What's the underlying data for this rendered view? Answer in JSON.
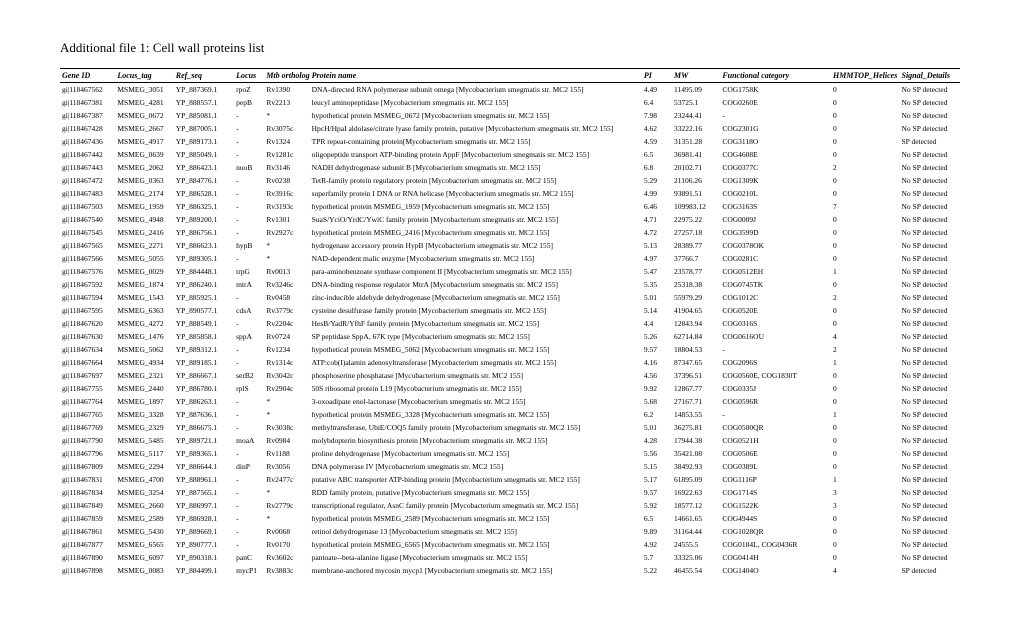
{
  "title": "Additional file 1: Cell wall proteins list",
  "columns": [
    "Gene ID",
    "Locus_tag",
    "Ref_seq",
    "Locus",
    "Mtb orthologue",
    "Protein name",
    "PI",
    "MW",
    "Functional category",
    "HMMTOP_Helices",
    "Signal_Details"
  ],
  "rows": [
    [
      "gi|118467562",
      "MSMEG_3051",
      "YP_887369.1",
      "rpoZ",
      "Rv1390",
      "DNA-directed RNA polymerase subunit omega [Mycobacterium smegmatis str. MC2 155]",
      "4.49",
      "11495.09",
      "COG1758K",
      "0",
      "No SP detected"
    ],
    [
      "gi|118467381",
      "MSMEG_4281",
      "YP_888557.1",
      "pepB",
      "Rv2213",
      "leucyl aminopeptidase [Mycobacterium smegmatis str. MC2 155]",
      "6.4",
      "53725.1",
      "COG0260E",
      "0",
      "No SP detected"
    ],
    [
      "gi|118467387",
      "MSMEG_0672",
      "YP_885081.1",
      "-",
      "*",
      "hypothetical protein MSMEG_0672 [Mycobacterium smegmatis str. MC2 155]",
      "7.98",
      "23244.41",
      "-",
      "0",
      "No SP detected"
    ],
    [
      "gi|118467428",
      "MSMEG_2667",
      "YP_887005.1",
      "-",
      "Rv3075c",
      "HpcH/HpaI aldolase/citrate lyase family protein, putative [Mycobacterium smegmatis str. MC2 155]",
      "4.62",
      "33222.16",
      "COG2301G",
      "0",
      "No SP detected"
    ],
    [
      "gi|118467436",
      "MSMEG_4917",
      "YP_889173.1",
      "-",
      "Rv1324",
      "TPR repeat-containing protein[Mycobacterium smegmatis str. MC2 155]",
      "4.59",
      "31351.28",
      "COG3118O",
      "0",
      "SP detected"
    ],
    [
      "gi|118467442",
      "MSMEG_0639",
      "YP_885049.1",
      "-",
      "Rv1281c",
      "oligopeptide transport ATP-binding protein AppF [Mycobacterium smegmatis str. MC2 155]",
      "6.5",
      "36981.41",
      "COG4608E",
      "0",
      "No SP detected"
    ],
    [
      "gi|118467443",
      "MSMEG_2062",
      "YP_886423.1",
      "nuoB",
      "Rv3146",
      "NADH dehydrogenase subunit B [Mycobacterium smegmatis str. MC2 155]",
      "6.8",
      "20102.71",
      "COG0377C",
      "2",
      "No SP detected"
    ],
    [
      "gi|118467472",
      "MSMEG_0363",
      "YP_884776.1",
      "-",
      "Rv0238",
      "TetR-family protein regulatory protein [Mycobacterium smegmatis str. MC2 155]",
      "5.29",
      "21106.26",
      "COG1309K",
      "0",
      "No SP detected"
    ],
    [
      "gi|118467483",
      "MSMEG_2174",
      "YP_886528.1",
      "-",
      "Rv3916c",
      "superfamily protein I DNA or RNA helicase [Mycobacterium smegmatis str. MC2 155]",
      "4.99",
      "93891.51",
      "COG0210L",
      "0",
      "No SP detected"
    ],
    [
      "gi|118467503",
      "MSMEG_1959",
      "YP_886325.1",
      "-",
      "Rv3193c",
      "hypothetical protein MSMEG_1959 [Mycobacterium smegmatis str. MC2 155]",
      "6.46",
      "109983.12",
      "COG3163S",
      "7",
      "No SP detected"
    ],
    [
      "gi|118467540",
      "MSMEG_4948",
      "YP_889200.1",
      "-",
      "Rv1301",
      "SuaS/YciO/YrdC/YwiC family protein [Mycobacterium smegmatis str. MC2 155]",
      "4.71",
      "22975.22",
      "COG0009J",
      "0",
      "No SP detected"
    ],
    [
      "gi|118467545",
      "MSMEG_2416",
      "YP_886756.1",
      "-",
      "Rv2927c",
      "hypothetical protein MSMEG_2416 [Mycobacterium smegmatis str. MC2 155]",
      "4.72",
      "27257.18",
      "COG3599D",
      "0",
      "No SP detected"
    ],
    [
      "gi|118467565",
      "MSMEG_2271",
      "YP_886623.1",
      "hypB",
      "*",
      "hydrogenase accessory protein HypB [Mycobacterium smegmatis str. MC2 155]",
      "5.13",
      "28389.77",
      "COG0378OK",
      "0",
      "No SP detected"
    ],
    [
      "gi|118467566",
      "MSMEG_5055",
      "YP_889305.1",
      "-",
      "*",
      "NAD-dependent malic enzyme [Mycobacterium smegmatis str. MC2 155]",
      "4.97",
      "37766.7",
      "COG0281C",
      "0",
      "No SP detected"
    ],
    [
      "gi|118467576",
      "MSMEG_0029",
      "YP_884448.1",
      "trpG",
      "Rv0013",
      "para-aminobenzoate synthase component II [Mycobacterium smegmatis str. MC2 155]",
      "5.47",
      "23578.77",
      "COG0512EH",
      "1",
      "No SP detected"
    ],
    [
      "gi|118467592",
      "MSMEG_1874",
      "YP_886240.1",
      "mtrA",
      "Rv3246c",
      "DNA-binding response regulator MtrA [Mycobacterium smegmatis str. MC2 155]",
      "5.35",
      "25318.38",
      "COG0745TK",
      "0",
      "No SP detected"
    ],
    [
      "gi|118467594",
      "MSMEG_1543",
      "YP_885925.1",
      "-",
      "Rv0458",
      "zinc-inducible aldehyde dehydrogenase [Mycobacterium smegmatis str. MC2 155]",
      "5.01",
      "55979.29",
      "COG1012C",
      "2",
      "No SP detected"
    ],
    [
      "gi|118467595",
      "MSMEG_6363",
      "YP_890577.1",
      "cdsA",
      "Rv3779c",
      "cysteine desulfurase family protein [Mycobacterium smegmatis str. MC2 155]",
      "5.14",
      "41904.65",
      "COG0520E",
      "0",
      "No SP detected"
    ],
    [
      "gi|118467620",
      "MSMEG_4272",
      "YP_888549.1",
      "-",
      "Rv2204c",
      "HesB/YadR/YfhF family protein [Mycobacterium smegmatis str. MC2 155]",
      "4.4",
      "12843.94",
      "COG0316S",
      "0",
      "No SP detected"
    ],
    [
      "gi|118467630",
      "MSMEG_1476",
      "YP_885858.1",
      "sppA",
      "Rv0724",
      "SP peptidase SppA, 67K type [Mycobacterium smegmatis str. MC2 155]",
      "5.26",
      "62714.84",
      "COG0616OU",
      "4",
      "No SP detected"
    ],
    [
      "gi|118467634",
      "MSMEG_5062",
      "YP_889312.1",
      "-",
      "Rv1234",
      "hypothetical protein MSMEG_5062 [Mycobacterium smegmatis str. MC2 155]",
      "9.57",
      "18804.53",
      "-",
      "2",
      "No SP detected"
    ],
    [
      "gi|118467664",
      "MSMEG_4934",
      "YP_889185.1",
      "-",
      "Rv1314c",
      "ATP:cob(I)alamin adenosyltransferase [Mycobacterium smegmatis str. MC2 155]",
      "4.16",
      "87347.65",
      "COG2096S",
      "1",
      "No SP detected"
    ],
    [
      "gi|118467697",
      "MSMEG_2321",
      "YP_886667.1",
      "serB2",
      "Rv3042c",
      "phosphoserine phosphatase [Mycobacterium smegmatis str. MC2 155]",
      "4.56",
      "37396.51",
      "COG0560E, COG1830T",
      "0",
      "No SP detected"
    ],
    [
      "gi|118467755",
      "MSMEG_2440",
      "YP_886780.1",
      "rplS",
      "Rv2904c",
      "50S ribosomal protein L19 [Mycobacterium smegmatis str. MC2 155]",
      "9.92",
      "12867.77",
      "COG0335J",
      "0",
      "No SP detected"
    ],
    [
      "gi|118467764",
      "MSMEG_1897",
      "YP_886263.1",
      "-",
      "*",
      "3-oxoadipate enol-lactonase [Mycobacterium smegmatis str. MC2 155]",
      "5.68",
      "27167.71",
      "COG0596R",
      "0",
      "No SP detected"
    ],
    [
      "gi|118467765",
      "MSMEG_3328",
      "YP_887636.1",
      "-",
      "*",
      "hypothetical protein MSMEG_3328 [Mycobacterium smegmatis str. MC2 155]",
      "6.2",
      "14853.55",
      "-",
      "1",
      "No SP detected"
    ],
    [
      "gi|118467769",
      "MSMEG_2329",
      "YP_886675.1",
      "-",
      "Rv3038c",
      "methyltransferase, UbiE/COQ5 family protein [Mycobacterium smegmatis str. MC2 155]",
      "5.01",
      "36275.81",
      "COG0500QR",
      "0",
      "No SP detected"
    ],
    [
      "gi|118467790",
      "MSMEG_5485",
      "YP_889721.1",
      "moaA",
      "Rv0984",
      "molybdopterin biosynthesis protein [Mycobacterium smegmatis str. MC2 155]",
      "4.28",
      "17944.38",
      "COG0521H",
      "0",
      "No SP detected"
    ],
    [
      "gi|118467796",
      "MSMEG_5117",
      "YP_889365.1",
      "-",
      "Rv1188",
      "proline dehydrogenase [Mycobacterium smegmatis str. MC2 155]",
      "5.56",
      "35421.08",
      "COG0506E",
      "0",
      "No SP detected"
    ],
    [
      "gi|118467809",
      "MSMEG_2294",
      "YP_886644.1",
      "dinP",
      "Rv3056",
      "DNA polymerase IV [Mycobacterium smegmatis str. MC2 155]",
      "5.15",
      "38492.93",
      "COG0389L",
      "0",
      "No SP detected"
    ],
    [
      "gi|118467831",
      "MSMEG_4700",
      "YP_888961.1",
      "-",
      "Rv2477c",
      "putative ABC transporter ATP-binding protein [Mycobacterium smegmatis str. MC2 155]",
      "5.17",
      "61895.09",
      "COG1116P",
      "1",
      "No SP detected"
    ],
    [
      "gi|118467834",
      "MSMEG_3254",
      "YP_887565.1",
      "-",
      "*",
      "RDD family protein, putative [Mycobacterium smegmatis str. MC2 155]",
      "9.57",
      "16922.63",
      "COG1714S",
      "3",
      "No SP detected"
    ],
    [
      "gi|118467849",
      "MSMEG_2660",
      "YP_886997.1",
      "-",
      "Rv2779c",
      "transcriptional regulator, AsnC family protein [Mycobacterium smegmatis str. MC2 155]",
      "5.92",
      "18577.12",
      "COG1522K",
      "3",
      "No SP detected"
    ],
    [
      "gi|118467859",
      "MSMEG_2589",
      "YP_886928.1",
      "-",
      "*",
      "hypothetical protein MSMEG_2589 [Mycobacterium smegmatis str. MC2 155]",
      "6.5",
      "14661.65",
      "COG4944S",
      "0",
      "No SP detected"
    ],
    [
      "gi|118467861",
      "MSMEG_5430",
      "YP_889669.1",
      "-",
      "Rv0068",
      "retinol dehydrogenase 13 [Mycobacterium smegmatis str. MC2 155]",
      "9.89",
      "31164.44",
      "COG1028QR",
      "0",
      "No SP detected"
    ],
    [
      "gi|118467877",
      "MSMEG_6565",
      "YP_890777.1",
      "-",
      "Rv0170",
      "hypothetical protein MSMEG_6565 [Mycobacterium smegmatis str. MC2 155]",
      "4.92",
      "24555.5",
      "COG0184L, COG0436R",
      "0",
      "No SP detected"
    ],
    [
      "gi|118467890",
      "MSMEG_6097",
      "YP_890318.1",
      "panC",
      "Rv3602c",
      "pantoate--beta-alanine ligase [Mycobacterium smegmatis str. MC2 155]",
      "5.7",
      "33325.06",
      "COG0414H",
      "0",
      "No SP detected"
    ],
    [
      "gi|118467898",
      "MSMEG_0083",
      "YP_884499.1",
      "mycP1",
      "Rv3883c",
      "membrane-anchored mycosin mycp1 [Mycobacterium smegmatis str. MC2 155]",
      "5.22",
      "46455.54",
      "COG1404O",
      "4",
      "SP detected"
    ]
  ]
}
